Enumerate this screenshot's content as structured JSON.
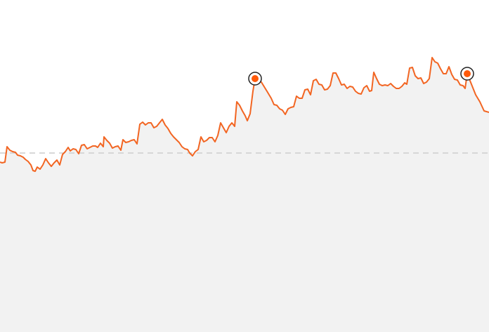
{
  "chart_data": {
    "type": "area",
    "title": "",
    "xlabel": "",
    "ylabel": "",
    "xlim": [
      0,
      696
    ],
    "ylim": [
      -255,
      218
    ],
    "grid": false,
    "legend": "none",
    "reference_line": {
      "y": 0,
      "style": "dashed",
      "color": "#cccccc"
    },
    "colors": {
      "line": "#f26522",
      "fill": "#f2f2f2",
      "marker_ring": "#222222",
      "marker_fill": "#ff5a0a"
    },
    "series": [
      {
        "x": [
          0,
          3,
          7,
          10,
          14,
          18,
          22,
          25,
          29,
          33,
          36,
          40,
          44,
          47,
          50,
          53,
          57,
          61,
          65,
          69,
          73,
          77,
          81,
          85,
          89,
          93,
          97,
          100,
          104,
          108,
          112,
          116,
          120,
          124,
          128,
          132,
          136,
          139,
          143,
          147,
          148,
          152,
          156,
          160,
          164,
          168,
          172,
          175,
          179,
          183,
          187,
          191,
          195,
          199,
          203,
          207,
          211,
          215,
          219,
          223,
          227,
          231,
          235,
          239,
          243,
          247,
          251,
          255,
          259,
          263,
          267,
          270,
          274,
          278,
          282,
          286,
          290,
          294,
          298,
          302,
          306,
          310,
          314,
          318,
          322,
          326,
          330,
          334,
          337,
          341,
          345,
          349,
          352,
          356,
          360,
          363,
          372,
          380,
          386,
          390,
          394,
          398,
          402,
          406,
          410,
          414,
          418,
          422,
          426,
          430,
          434,
          438,
          442,
          446,
          450,
          454,
          458,
          462,
          466,
          470,
          474,
          478,
          482,
          486,
          490,
          494,
          498,
          502,
          506,
          510,
          514,
          518,
          522,
          526,
          529,
          532,
          536,
          540,
          544,
          548,
          552,
          556,
          560,
          564,
          568,
          572,
          576,
          579,
          583,
          587,
          591,
          595,
          599,
          603,
          607,
          611,
          615,
          619,
          623,
          627,
          631,
          635,
          639,
          643,
          647,
          651,
          655,
          659,
          662,
          665,
          671,
          677,
          683,
          689,
          696
        ],
        "y": [
          -13,
          -14,
          -13,
          9,
          4,
          2,
          1,
          -3,
          -4,
          -6,
          -9,
          -12,
          -17,
          -25,
          -26,
          -20,
          -23,
          -17,
          -8,
          -14,
          -19,
          -14,
          -10,
          -17,
          -2,
          2,
          8,
          3,
          6,
          5,
          -1,
          11,
          12,
          6,
          8,
          10,
          10,
          8,
          14,
          9,
          23,
          18,
          14,
          7,
          9,
          10,
          4,
          19,
          15,
          16,
          18,
          19,
          13,
          41,
          44,
          40,
          43,
          43,
          36,
          38,
          43,
          48,
          40,
          35,
          28,
          23,
          19,
          15,
          9,
          6,
          5,
          0,
          -4,
          2,
          5,
          23,
          16,
          18,
          22,
          22,
          16,
          25,
          43,
          36,
          29,
          38,
          43,
          38,
          73,
          68,
          60,
          53,
          46,
          56,
          88,
          106,
          101,
          88,
          78,
          69,
          68,
          63,
          61,
          55,
          63,
          65,
          66,
          81,
          78,
          78,
          90,
          91,
          83,
          103,
          105,
          98,
          97,
          90,
          91,
          96,
          114,
          114,
          106,
          97,
          98,
          92,
          95,
          94,
          88,
          85,
          84,
          93,
          96,
          88,
          89,
          115,
          106,
          98,
          96,
          97,
          96,
          99,
          95,
          92,
          92,
          95,
          100,
          98,
          121,
          122,
          110,
          106,
          107,
          99,
          101,
          106,
          136,
          130,
          128,
          120,
          113,
          113,
          123,
          112,
          105,
          104,
          97,
          96,
          92,
          113,
          98,
          83,
          73,
          60,
          58
        ]
      }
    ],
    "highlight_points": [
      {
        "x": 363,
        "y": 106
      },
      {
        "x": 665,
        "y": 113
      }
    ]
  }
}
